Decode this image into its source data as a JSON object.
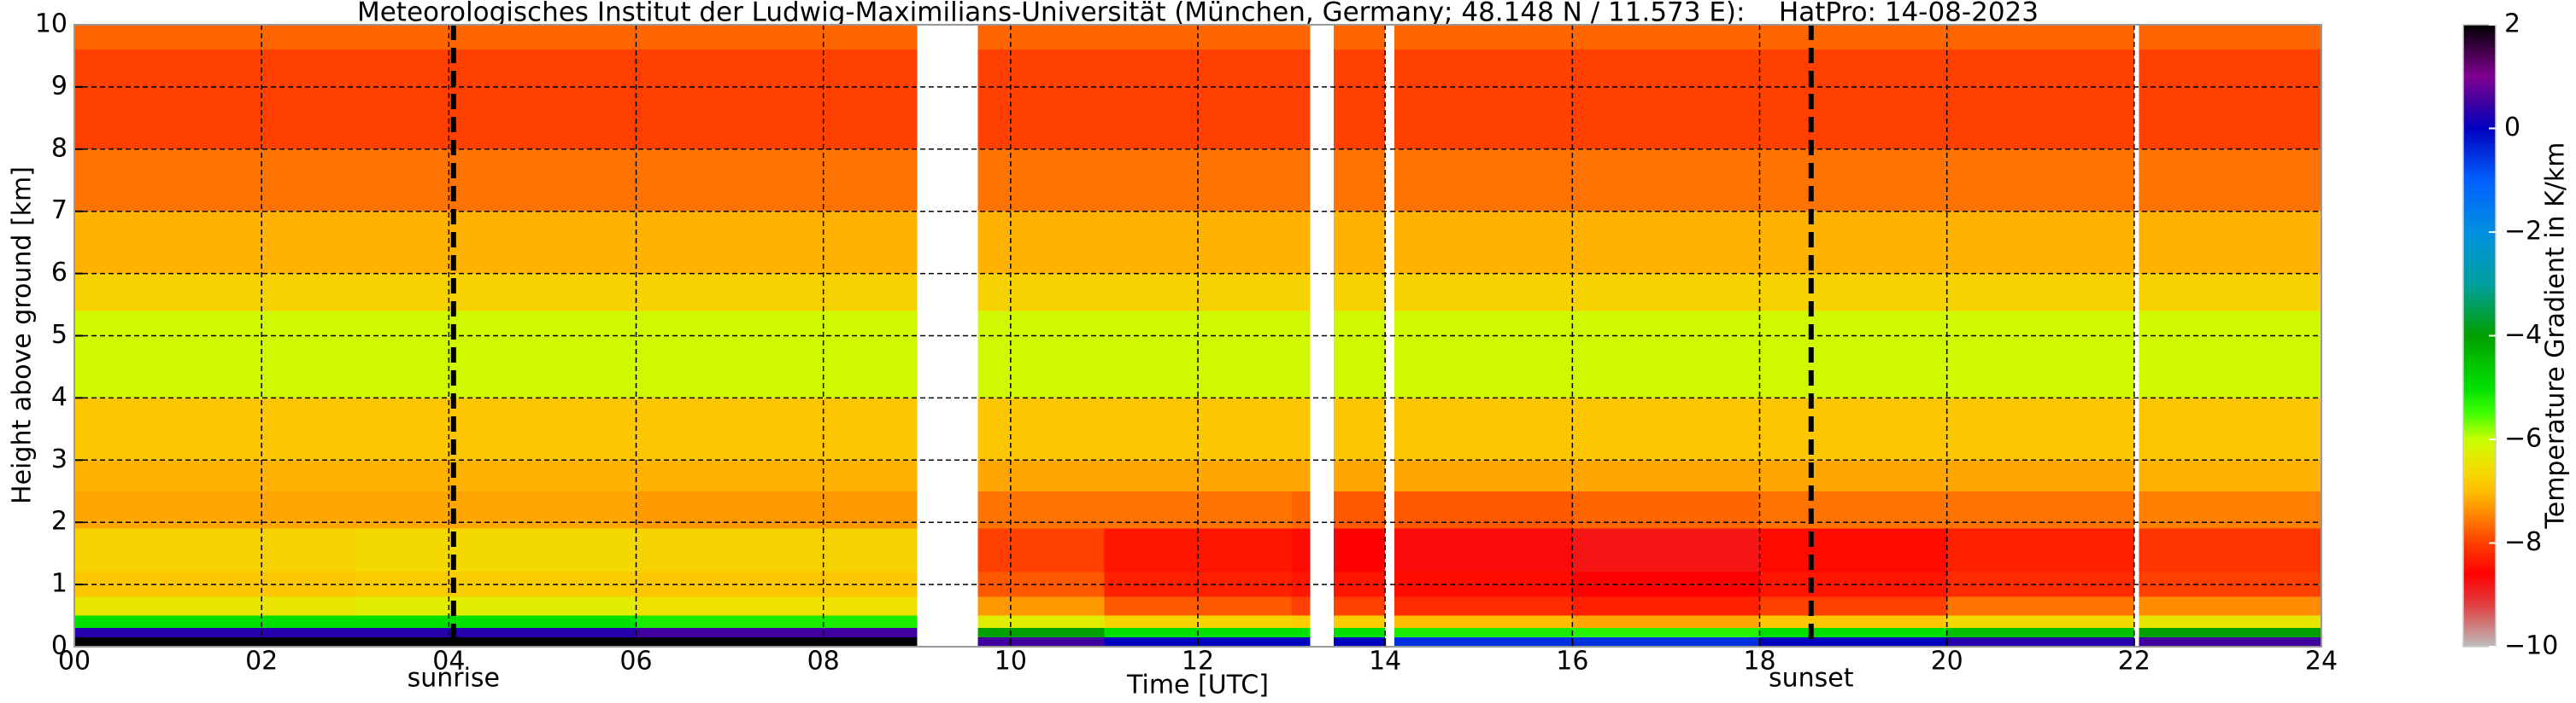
{
  "chart_data": {
    "type": "heatmap",
    "title": "Meteorologisches Institut der Ludwig-Maximilians-Universität (München, Germany; 48.148 N / 11.573 E):    HatPro: 14-08-2023",
    "x_label": "Time [UTC]",
    "y_label": "Height above ground [km]",
    "colorbar_label": "Temperature Gradient in K/km",
    "x_edges": [
      0,
      3,
      6,
      9,
      9.65,
      11,
      13,
      13.2,
      13.45,
      14,
      14.1,
      16,
      18,
      20,
      22,
      22.05,
      24
    ],
    "y_edges": [
      0,
      0.15,
      0.3,
      0.5,
      0.8,
      1.2,
      1.9,
      2.5,
      3,
      4,
      5.4,
      6,
      7,
      8,
      9.6,
      10
    ],
    "values": [
      [
        2,
        2,
        2,
        null,
        0.5,
        0,
        0,
        null,
        0,
        null,
        -0.5,
        -0.5,
        0,
        0.3,
        null,
        0.5
      ],
      [
        0.3,
        0.3,
        0.5,
        null,
        -4,
        -5,
        -5,
        null,
        -5,
        null,
        -5.2,
        -5.3,
        -5,
        -4.5,
        null,
        -4
      ],
      [
        -5,
        -5,
        -5.2,
        null,
        -6.3,
        -6.7,
        -6.8,
        null,
        -6.8,
        null,
        -7,
        -7.2,
        -6.9,
        -6.6,
        null,
        -6.4
      ],
      [
        -6.4,
        -6.3,
        -6.5,
        null,
        -7.3,
        -7.8,
        -8,
        null,
        -8,
        null,
        -8.2,
        -8.3,
        -8,
        -7.6,
        null,
        -7.4
      ],
      [
        -6.9,
        -6.8,
        -6.9,
        null,
        -7.8,
        -8.3,
        -8.4,
        null,
        -8.4,
        null,
        -8.5,
        -8.6,
        -8.4,
        -8.2,
        null,
        -8
      ],
      [
        -6.7,
        -6.6,
        -6.7,
        null,
        -8,
        -8.4,
        -8.5,
        null,
        -8.6,
        null,
        -8.7,
        -8.8,
        -8.5,
        -8.3,
        null,
        -8.1
      ],
      [
        -7.2,
        -7.2,
        -7.3,
        null,
        -7.6,
        -7.6,
        -7.7,
        null,
        -7.8,
        null,
        -7.8,
        -7.7,
        -7.6,
        -7.6,
        null,
        -7.5
      ],
      [
        -7.1,
        -7.1,
        -7.1,
        null,
        -7.2,
        -7.2,
        -7.2,
        null,
        -7.2,
        null,
        -7.2,
        -7.2,
        -7.2,
        -7.2,
        null,
        -7.1
      ],
      [
        -6.9,
        -6.9,
        -6.9,
        null,
        -6.9,
        -6.9,
        -6.9,
        null,
        -6.9,
        null,
        -6.9,
        -6.9,
        -6.9,
        -6.9,
        null,
        -6.9
      ],
      [
        -6.1,
        -6.1,
        -6.1,
        null,
        -6.1,
        -6.1,
        -6.1,
        null,
        -6.1,
        null,
        -6.1,
        -6.1,
        -6.1,
        -6.1,
        null,
        -6.1
      ],
      [
        -6.7,
        -6.7,
        -6.7,
        null,
        -6.7,
        -6.7,
        -6.7,
        null,
        -6.7,
        null,
        -6.7,
        -6.7,
        -6.7,
        -6.7,
        null,
        -6.7
      ],
      [
        -7.1,
        -7.1,
        -7.1,
        null,
        -7.1,
        -7.1,
        -7.1,
        null,
        -7.1,
        null,
        -7.1,
        -7.1,
        -7.1,
        -7.1,
        null,
        -7.1
      ],
      [
        -7.6,
        -7.6,
        -7.6,
        null,
        -7.6,
        -7.6,
        -7.6,
        null,
        -7.6,
        null,
        -7.6,
        -7.6,
        -7.6,
        -7.6,
        null,
        -7.6
      ],
      [
        -8,
        -8,
        -8,
        null,
        -8,
        -8,
        -8,
        null,
        -8,
        null,
        -8,
        -8,
        -8,
        -8,
        null,
        -8
      ],
      [
        -7.7,
        -7.7,
        -7.7,
        null,
        -7.7,
        -7.7,
        -7.7,
        null,
        -7.7,
        null,
        -7.7,
        -7.7,
        -7.7,
        -7.7,
        null,
        -7.7
      ]
    ],
    "xlim": [
      0,
      24
    ],
    "xticks": [
      {
        "value": 0,
        "label": "00"
      },
      {
        "value": 2,
        "label": "02"
      },
      {
        "value": 4,
        "label": "04"
      },
      {
        "value": 6,
        "label": "06"
      },
      {
        "value": 8,
        "label": "08"
      },
      10,
      12,
      14,
      16,
      18,
      20,
      22,
      24
    ],
    "ylim": [
      0,
      10
    ],
    "yticks": [
      0,
      1,
      2,
      3,
      4,
      5,
      6,
      7,
      8,
      9,
      10
    ],
    "clim": [
      -10,
      2
    ],
    "cticks": [
      {
        "value": -10,
        "label": "−10"
      },
      {
        "value": -8,
        "label": "−8"
      },
      {
        "value": -6,
        "label": "−6"
      },
      {
        "value": -4,
        "label": "−4"
      },
      {
        "value": -2,
        "label": "−2"
      },
      0,
      2
    ],
    "colormap": [
      {
        "value": -10,
        "color": "#bdbdbd"
      },
      {
        "value": -9.2,
        "color": "#e04040"
      },
      {
        "value": -8.6,
        "color": "#ff0000"
      },
      {
        "value": -8,
        "color": "#ff4000"
      },
      {
        "value": -7.4,
        "color": "#ff8c00"
      },
      {
        "value": -7,
        "color": "#ffbf00"
      },
      {
        "value": -6.5,
        "color": "#f0e000"
      },
      {
        "value": -6,
        "color": "#c8ff00"
      },
      {
        "value": -5.5,
        "color": "#40ff00"
      },
      {
        "value": -5,
        "color": "#00e000"
      },
      {
        "value": -4,
        "color": "#00a000"
      },
      {
        "value": -3,
        "color": "#00a0a0"
      },
      {
        "value": -2,
        "color": "#0090e0"
      },
      {
        "value": -1,
        "color": "#0060ff"
      },
      {
        "value": 0,
        "color": "#0000c0"
      },
      {
        "value": 0.5,
        "color": "#4000a0"
      },
      {
        "value": 1,
        "color": "#800090"
      },
      {
        "value": 2,
        "color": "#000000"
      }
    ],
    "markers": [
      {
        "x": 4.05,
        "label": "sunrise"
      },
      {
        "x": 18.55,
        "label": "sunset"
      }
    ],
    "grid": true
  }
}
